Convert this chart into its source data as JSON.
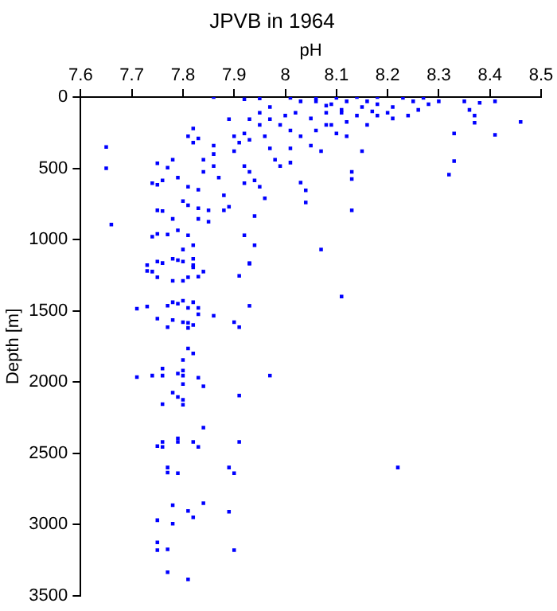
{
  "chart_data": {
    "type": "scatter",
    "title": "JPVB in 1964",
    "xlabel": "pH",
    "ylabel": "Depth [m]",
    "xlim": [
      7.6,
      8.5
    ],
    "xticks": [
      7.6,
      7.7,
      7.8,
      7.9,
      8,
      8.1,
      8.2,
      8.3,
      8.4,
      8.5
    ],
    "ylim": [
      3500,
      0
    ],
    "yticks": [
      0,
      500,
      1000,
      1500,
      2000,
      2500,
      3000,
      3500
    ],
    "grid": false,
    "legend": false,
    "marker": "square",
    "series": [
      {
        "color": "#0000ff",
        "x": [
          7.65,
          7.65,
          7.66,
          7.86,
          7.92,
          7.95,
          8.35,
          8.38,
          8.41,
          8.46,
          8.41,
          8.33,
          8.33,
          8.32,
          8.36,
          8.37,
          8.37,
          8.13,
          8.13,
          8.13,
          8.07,
          8.04,
          8.04,
          8.03,
          8.15,
          8.12,
          7.94,
          7.94,
          7.92,
          7.93,
          7.75,
          7.77,
          7.74,
          7.75,
          7.76,
          7.75,
          7.76,
          7.78,
          7.74,
          7.75,
          7.77,
          7.79,
          7.81,
          7.82,
          7.8,
          7.78,
          7.79,
          7.81,
          7.83,
          7.8,
          7.81,
          7.83,
          7.83,
          7.85,
          7.85,
          7.88,
          7.89,
          7.82,
          7.81,
          7.82,
          7.83,
          7.86,
          7.86,
          7.86,
          7.87,
          7.88,
          7.84,
          7.84,
          7.89,
          7.9,
          7.91,
          7.92,
          7.93,
          7.9,
          7.92,
          7.93,
          7.94,
          7.95,
          7.96,
          7.92,
          7.95,
          7.96,
          7.97,
          7.98,
          7.99,
          8.01,
          8.01,
          8.01,
          7.99,
          7.97,
          8,
          8.03,
          8.05,
          8.06,
          8.07,
          8.08,
          8.1,
          8.11,
          8.03,
          8.06,
          8.09,
          8.12,
          8.15,
          8.18,
          8.21,
          8.25,
          8.28,
          8.3,
          8.02,
          8.05,
          8.08,
          8.14,
          8.16,
          8.18,
          8.21,
          8.24,
          8.26,
          8.06,
          8.1,
          8.14,
          8.18,
          8.23,
          8.27,
          8.01,
          7.97,
          7.95,
          7.93,
          8.08,
          8.11,
          8.17,
          8.2,
          8.16,
          8.12,
          8.09,
          7.73,
          7.73,
          7.74,
          7.75,
          7.76,
          7.75,
          7.78,
          7.78,
          7.79,
          7.8,
          7.82,
          7.82,
          7.82,
          7.84,
          7.83,
          7.81,
          7.8,
          7.91,
          7.93,
          8.11,
          7.71,
          7.73,
          7.77,
          7.78,
          7.79,
          7.8,
          7.82,
          7.83,
          7.81,
          7.83,
          7.86,
          7.93,
          7.75,
          7.78,
          7.8,
          7.81,
          7.82,
          7.81,
          7.77,
          7.9,
          7.91,
          7.81,
          7.82,
          7.8,
          7.76,
          7.71,
          7.74,
          7.76,
          7.79,
          7.8,
          7.8,
          7.83,
          7.84,
          7.8,
          7.78,
          7.79,
          7.8,
          7.8,
          7.76,
          7.91,
          7.97,
          7.84,
          7.75,
          7.76,
          7.76,
          7.79,
          7.79,
          7.82,
          7.83,
          7.91,
          7.77,
          7.77,
          7.79,
          7.89,
          7.9,
          8.22,
          7.78,
          7.84,
          7.81,
          7.82,
          7.89,
          7.75,
          7.78,
          7.75,
          7.75,
          7.77,
          7.9,
          7.77,
          7.81
        ],
        "values": [
          500,
          350,
          895,
          0,
          15,
          10,
          30,
          40,
          30,
          175,
          265,
          255,
          450,
          545,
          90,
          130,
          180,
          525,
          575,
          795,
          1070,
          655,
          740,
          600,
          380,
          275,
          835,
          1040,
          970,
          1165,
          465,
          495,
          605,
          615,
          585,
          795,
          800,
          855,
          980,
          960,
          965,
          935,
          970,
          1040,
          1070,
          440,
          565,
          630,
          650,
          730,
          760,
          780,
          855,
          875,
          795,
          795,
          770,
          320,
          275,
          220,
          290,
          340,
          400,
          485,
          565,
          690,
          525,
          440,
          155,
          275,
          320,
          255,
          300,
          380,
          485,
          525,
          585,
          630,
          710,
          605,
          195,
          275,
          360,
          440,
          485,
          460,
          360,
          235,
          195,
          155,
          130,
          275,
          340,
          235,
          380,
          195,
          255,
          110,
          30,
          30,
          50,
          30,
          70,
          50,
          70,
          30,
          50,
          30,
          110,
          150,
          110,
          130,
          195,
          130,
          150,
          130,
          90,
          10,
          5,
          0,
          0,
          5,
          5,
          5,
          70,
          110,
          155,
          60,
          90,
          100,
          110,
          30,
          175,
          195,
          1180,
          1220,
          1225,
          1155,
          1165,
          1265,
          1290,
          1135,
          1145,
          1155,
          1180,
          1135,
          1195,
          1225,
          1260,
          1265,
          1290,
          1255,
          1170,
          1400,
          1485,
          1470,
          1465,
          1440,
          1450,
          1430,
          1440,
          1480,
          1480,
          1525,
          1535,
          1465,
          1555,
          1565,
          1580,
          1585,
          1600,
          1620,
          1615,
          1580,
          1615,
          1765,
          1800,
          1845,
          1905,
          1965,
          1955,
          1955,
          1940,
          1920,
          1955,
          1970,
          2030,
          2015,
          2075,
          2105,
          2125,
          2160,
          2155,
          2095,
          1955,
          2320,
          2450,
          2420,
          2455,
          2395,
          2420,
          2420,
          2455,
          2420,
          2600,
          2635,
          2640,
          2600,
          2640,
          2600,
          2865,
          2850,
          2905,
          2950,
          2910,
          2970,
          2995,
          3125,
          3180,
          3175,
          3180,
          3335,
          3385
        ]
      }
    ]
  }
}
